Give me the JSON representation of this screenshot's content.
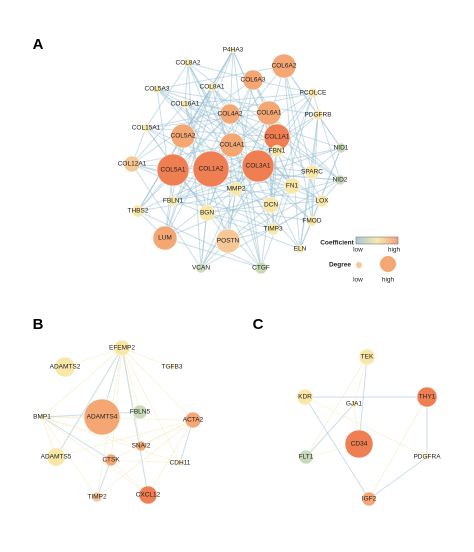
{
  "panels": [
    {
      "label": "A",
      "nodes": [
        {
          "label": "P4HA3"
        },
        {
          "label": "COL8A2"
        },
        {
          "label": "COL6A2"
        },
        {
          "label": "COL6A3"
        },
        {
          "label": "COL8A1"
        },
        {
          "label": "PCOLCE"
        },
        {
          "label": "COL5A3"
        },
        {
          "label": "COL16A1"
        },
        {
          "label": "COL4A2"
        },
        {
          "label": "COL6A1"
        },
        {
          "label": "PDGFRB"
        },
        {
          "label": "COL15A1"
        },
        {
          "label": "COL5A2"
        },
        {
          "label": "COL1A1"
        },
        {
          "label": "NID1"
        },
        {
          "label": "COL4A1"
        },
        {
          "label": "FBN1"
        },
        {
          "label": "COL12A1"
        },
        {
          "label": "SPARC"
        },
        {
          "label": "NID2"
        },
        {
          "label": "COL5A1"
        },
        {
          "label": "COL1A2"
        },
        {
          "label": "COL3A1"
        },
        {
          "label": "MMP2"
        },
        {
          "label": "FN1"
        },
        {
          "label": "LOX"
        },
        {
          "label": "FBLN1"
        },
        {
          "label": "DCN"
        },
        {
          "label": "THBS2"
        },
        {
          "label": "BGN"
        },
        {
          "label": "FMOD"
        },
        {
          "label": "TIMP3"
        },
        {
          "label": "LUM"
        },
        {
          "label": "POSTN"
        },
        {
          "label": "ELN"
        },
        {
          "label": "VCAN"
        },
        {
          "label": "CTGF"
        }
      ],
      "legend": {
        "coefficient": {
          "title": "Coefficient",
          "low": "low",
          "high": "high"
        },
        "degree": {
          "title": "Degree",
          "low": "low",
          "high": "high"
        }
      }
    },
    {
      "label": "B",
      "nodes": [
        {
          "label": "EFEMP2"
        },
        {
          "label": "ADAMTS2"
        },
        {
          "label": "TGFB3"
        },
        {
          "label": "BMP1"
        },
        {
          "label": "ADAMTS4"
        },
        {
          "label": "FBLN5"
        },
        {
          "label": "ACTA2"
        },
        {
          "label": "SNAI2"
        },
        {
          "label": "ADAMTS5"
        },
        {
          "label": "CTSK"
        },
        {
          "label": "CDH11"
        },
        {
          "label": "TIMP2"
        },
        {
          "label": "CXCL12"
        }
      ]
    },
    {
      "label": "C",
      "nodes": [
        {
          "label": "TEK"
        },
        {
          "label": "KDR"
        },
        {
          "label": "GJA1"
        },
        {
          "label": "THY1"
        },
        {
          "label": "CD34"
        },
        {
          "label": "PDGFRA"
        },
        {
          "label": "FLT1"
        },
        {
          "label": "IGF2"
        }
      ]
    }
  ]
}
